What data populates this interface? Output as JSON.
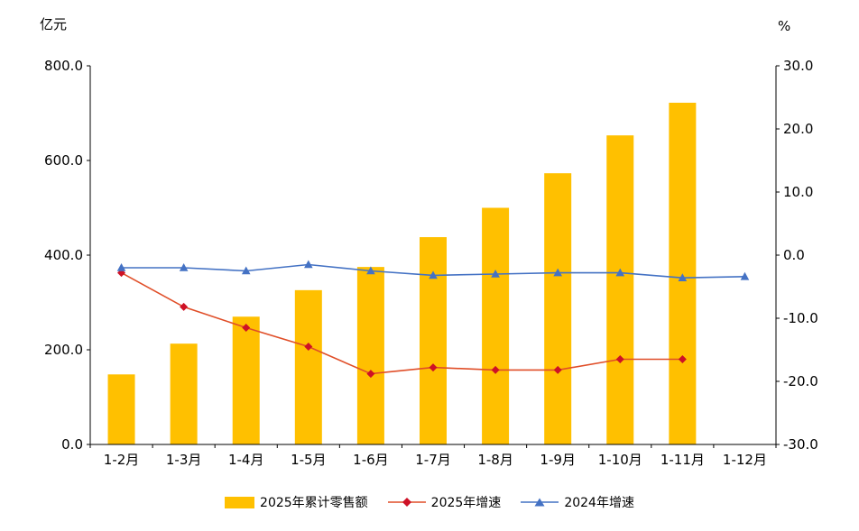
{
  "chart_data": {
    "type": "combo",
    "left_axis_unit": "亿元",
    "right_axis_unit": "%",
    "categories": [
      "1-2月",
      "1-3月",
      "1-4月",
      "1-5月",
      "1-6月",
      "1-7月",
      "1-8月",
      "1-9月",
      "1-10月",
      "1-11月",
      "1-12月"
    ],
    "left_axis": {
      "min": 0,
      "max": 800,
      "step": 200,
      "tick_labels": [
        "0.0",
        "200.0",
        "400.0",
        "600.0",
        "800.0"
      ]
    },
    "right_axis": {
      "min": -30,
      "max": 30,
      "step": 10,
      "tick_labels": [
        "-30.0",
        "-20.0",
        "-10.0",
        "0.0",
        "10.0",
        "20.0",
        "30.0"
      ]
    },
    "grid": false,
    "legend_position": "bottom",
    "series": [
      {
        "name": "2025年累计零售额",
        "type": "bar",
        "axis": "left",
        "color": "#FFC000",
        "values": [
          148,
          213,
          270,
          326,
          375,
          438,
          500,
          573,
          653,
          722,
          null
        ]
      },
      {
        "name": "2025年增速",
        "type": "line",
        "axis": "right",
        "color": "#E04E28",
        "marker": "diamond",
        "marker_color": "#CE1126",
        "values": [
          -2.8,
          -8.2,
          -11.5,
          -14.5,
          -18.8,
          -17.8,
          -18.2,
          -18.2,
          -16.5,
          -16.5,
          null
        ]
      },
      {
        "name": "2024年增速",
        "type": "line",
        "axis": "right",
        "color": "#4472C4",
        "marker": "triangle",
        "marker_color": "#4472C4",
        "values": [
          -2.0,
          -2.0,
          -2.5,
          -1.5,
          -2.5,
          -3.2,
          -3.0,
          -2.8,
          -2.8,
          -3.6,
          -3.4
        ]
      }
    ]
  }
}
